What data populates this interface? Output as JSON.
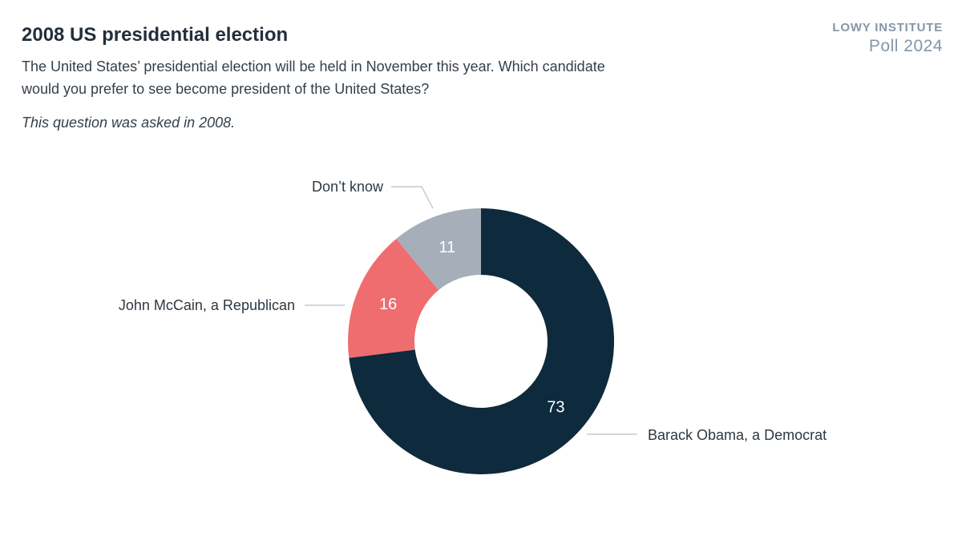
{
  "header": {
    "title": "2008 US presidential election",
    "question_lines": [
      "The United States’ presidential election will be held in November this year. Which candidate",
      "would you prefer to see become president of the United States?"
    ],
    "note": "This question was asked in 2008."
  },
  "branding": {
    "line1": "LOWY INSTITUTE",
    "line2": "Poll 2024",
    "color": "#8695a8"
  },
  "chart_data": {
    "type": "pie",
    "subtype": "donut",
    "title": "2008 US presidential election",
    "categories": [
      "Barack Obama, a Democrat",
      "John McCain, a Republican",
      "Don’t know"
    ],
    "values": [
      73,
      16,
      11
    ],
    "colors": [
      "#0e2a3d",
      "#ef6d6e",
      "#a6afb9"
    ],
    "value_label_color": "#ffffff",
    "start_angle_deg": 0,
    "direction": "clockwise",
    "inner_radius_ratio": 0.5,
    "legend_position": "outside-callouts",
    "leader_line_color": "#c3ccd5"
  }
}
